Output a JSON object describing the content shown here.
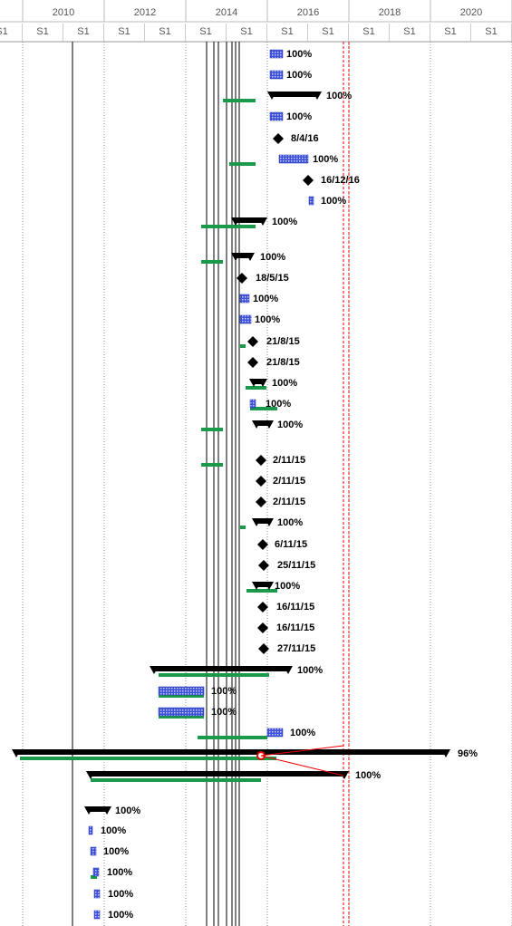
{
  "header": {
    "years": [
      "2010",
      "2012",
      "2014",
      "2016",
      "2018",
      "2020"
    ],
    "halves": [
      "S1",
      "S1",
      "S1",
      "S1",
      "S1",
      "S1",
      "S1",
      "S1",
      "S1",
      "S1",
      "S1",
      "S1",
      "S1"
    ]
  },
  "rows": [
    "100%",
    "100%",
    "100%",
    "100%",
    "8/4/16",
    "100%",
    "16/12/16",
    "100%",
    "100%",
    "100%",
    "18/5/15",
    "100%",
    "100%",
    "21/8/15",
    "21/8/15",
    "100%",
    "100%",
    "100%",
    "2/11/15",
    "2/11/15",
    "2/11/15",
    "100%",
    "6/11/15",
    "25/11/15",
    "100%",
    "16/11/15",
    "16/11/15",
    "27/11/15",
    "100%",
    "100%",
    "100%",
    "100%",
    "96%",
    "100%",
    "100%",
    "100%",
    "100%",
    "100%",
    "100%",
    "100%"
  ]
}
